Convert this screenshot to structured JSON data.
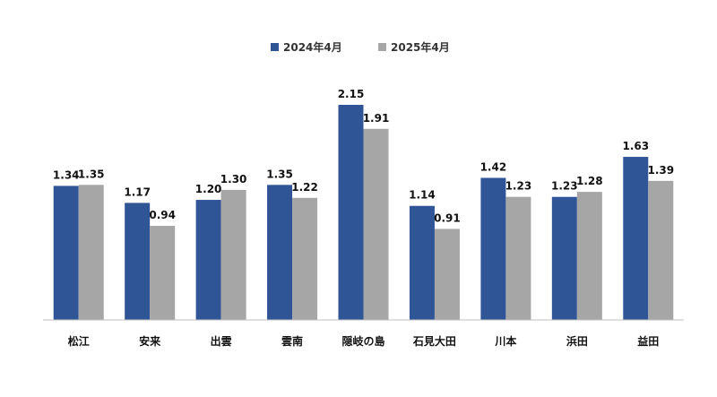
{
  "chart_data": {
    "type": "bar",
    "title": "",
    "xlabel": "",
    "ylabel": "",
    "categories": [
      "松江",
      "安来",
      "出雲",
      "雲南",
      "隠岐の島",
      "石見大田",
      "川本",
      "浜田",
      "益田"
    ],
    "series": [
      {
        "name": "2024年4月",
        "color": "#2f5597",
        "values": [
          1.34,
          1.17,
          1.2,
          1.35,
          2.15,
          1.14,
          1.42,
          1.23,
          1.63
        ]
      },
      {
        "name": "2025年4月",
        "color": "#a6a6a6",
        "values": [
          1.35,
          0.94,
          1.3,
          1.22,
          1.91,
          0.91,
          1.23,
          1.28,
          1.39
        ]
      }
    ],
    "ylim": [
      0,
      2.2
    ],
    "grid": false,
    "legend_position": "top-center",
    "data_labels": true,
    "value_format_decimals": 2
  }
}
